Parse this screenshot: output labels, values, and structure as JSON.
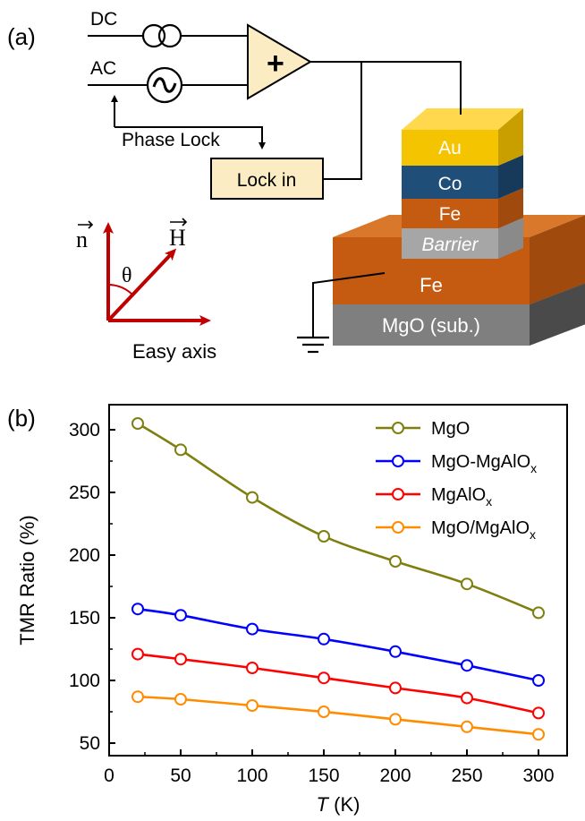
{
  "panel_a": {
    "label": "(a)",
    "dc": "DC",
    "ac": "AC",
    "amp_symbol": "+",
    "phase_lock": "Phase Lock",
    "lock_in": "Lock in",
    "layers": {
      "au": "Au",
      "co": "Co",
      "fe_top": "Fe",
      "barrier": "Barrier",
      "fe_bottom": "Fe",
      "substrate": "MgO (sub.)"
    },
    "vector_n": "n",
    "vector_h": "H",
    "theta": "θ",
    "easy_axis": "Easy axis",
    "colors": {
      "au": "#f5c400",
      "co": "#1f4e79",
      "fe": "#c55a11",
      "barrier": "#a6a6a6",
      "substrate": "#7f7f7f",
      "vectors": "#c00000",
      "box": "#fcecc4"
    }
  },
  "panel_b": {
    "label": "(b)"
  },
  "chart_data": {
    "type": "line",
    "xlabel_italic": "T",
    "xlabel_unit": " (K)",
    "ylabel": "TMR Ratio (%)",
    "xlim": [
      0,
      320
    ],
    "ylim": [
      40,
      320
    ],
    "xticks": [
      0,
      50,
      100,
      150,
      200,
      250,
      300
    ],
    "yticks": [
      50,
      100,
      150,
      200,
      250,
      300
    ],
    "legend_position": "top-right",
    "series": [
      {
        "name": "MgO",
        "sub": "",
        "color": "#7f7f10",
        "x": [
          20,
          50,
          100,
          150,
          200,
          250,
          300
        ],
        "y": [
          305,
          284,
          246,
          215,
          195,
          177,
          154
        ]
      },
      {
        "name": "MgO-MgAlO",
        "sub": "x",
        "color": "#0000ff",
        "x": [
          20,
          50,
          100,
          150,
          200,
          250,
          300
        ],
        "y": [
          157,
          152,
          141,
          133,
          123,
          112,
          100
        ]
      },
      {
        "name": "MgAlO",
        "sub": "x",
        "color": "#ff0000",
        "x": [
          20,
          50,
          100,
          150,
          200,
          250,
          300
        ],
        "y": [
          121,
          117,
          110,
          102,
          94,
          86,
          74
        ]
      },
      {
        "name": "MgO/MgAlO",
        "sub": "x",
        "color": "#ff8c00",
        "x": [
          20,
          50,
          100,
          150,
          200,
          250,
          300
        ],
        "y": [
          87,
          85,
          80,
          75,
          69,
          63,
          57
        ]
      }
    ]
  }
}
